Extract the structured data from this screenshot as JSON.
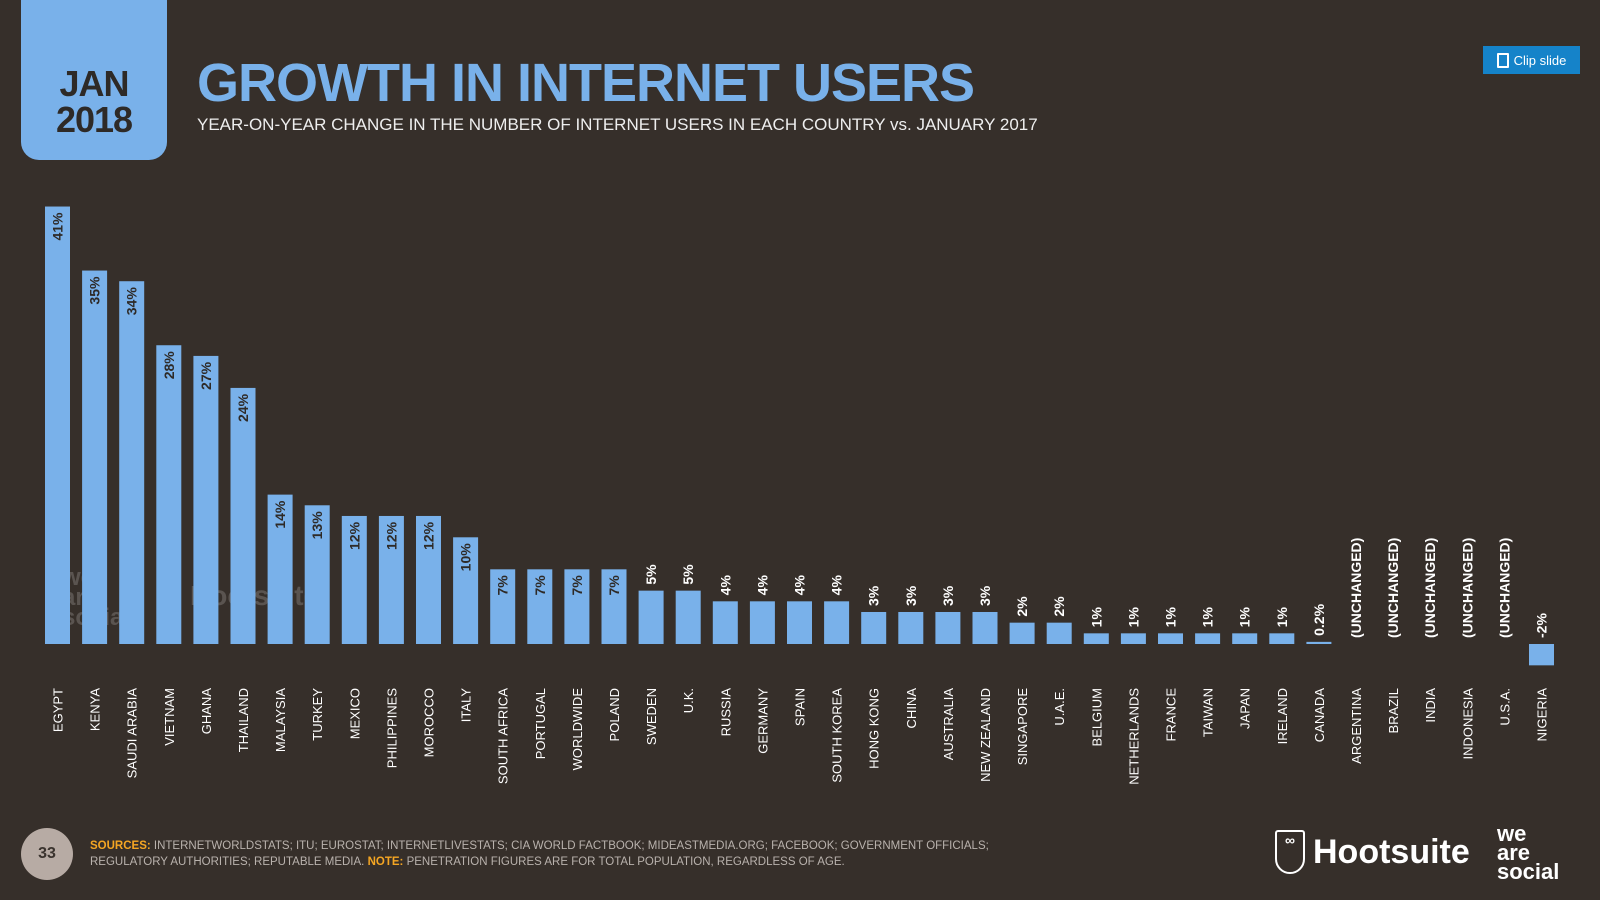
{
  "header": {
    "month": "JAN",
    "year": "2018",
    "title": "GROWTH IN INTERNET USERS",
    "subtitle": "YEAR-ON-YEAR CHANGE IN THE NUMBER OF INTERNET USERS IN EACH COUNTRY vs. JANUARY 2017"
  },
  "clip_button": {
    "label": "Clip slide",
    "icon": "clipboard-icon"
  },
  "footer": {
    "page_number": "33",
    "sources_label": "SOURCES:",
    "sources_text": "INTERNETWORLDSTATS; ITU; EUROSTAT; INTERNETLIVESTATS; CIA WORLD FACTBOOK; MIDEASTMEDIA.ORG; FACEBOOK; GOVERNMENT OFFICIALS; REGULATORY AUTHORITIES; REPUTABLE MEDIA.",
    "note_label": "NOTE:",
    "note_text": "PENETRATION FIGURES ARE FOR TOTAL POPULATION, REGARDLESS OF AGE.",
    "hootsuite": "Hootsuite",
    "we_are_social": [
      "we",
      "are",
      "social"
    ]
  },
  "colors": {
    "background": "#362f2a",
    "bar": "#79b1ea",
    "accent": "#f5a623"
  },
  "chart_data": {
    "type": "bar",
    "title": "GROWTH IN INTERNET USERS",
    "orientation": "vertical",
    "grid": false,
    "categories": [
      "EGYPT",
      "KENYA",
      "SAUDI ARABIA",
      "VIETNAM",
      "GHANA",
      "THAILAND",
      "MALAYSIA",
      "TURKEY",
      "MEXICO",
      "PHILIPPINES",
      "MOROCCO",
      "ITALY",
      "SOUTH AFRICA",
      "PORTUGAL",
      "WORLDWIDE",
      "POLAND",
      "SWEDEN",
      "U.K.",
      "RUSSIA",
      "GERMANY",
      "SPAIN",
      "SOUTH KOREA",
      "HONG KONG",
      "CHINA",
      "AUSTRALIA",
      "NEW ZEALAND",
      "SINGAPORE",
      "U.A.E.",
      "BELGIUM",
      "NETHERLANDS",
      "FRANCE",
      "TAIWAN",
      "JAPAN",
      "IRELAND",
      "CANADA",
      "ARGENTINA",
      "BRAZIL",
      "INDIA",
      "INDONESIA",
      "U.S.A.",
      "NIGERIA"
    ],
    "values": [
      41,
      35,
      34,
      28,
      27,
      24,
      14,
      13,
      12,
      12,
      12,
      10,
      7,
      7,
      7,
      7,
      5,
      5,
      4,
      4,
      4,
      4,
      3,
      3,
      3,
      3,
      2,
      2,
      1,
      1,
      1,
      1,
      1,
      1,
      0.2,
      0,
      0,
      0,
      0,
      0,
      -2
    ],
    "data_labels": [
      "41%",
      "35%",
      "34%",
      "28%",
      "27%",
      "24%",
      "14%",
      "13%",
      "12%",
      "12%",
      "12%",
      "10%",
      "7%",
      "7%",
      "7%",
      "7%",
      "5%",
      "5%",
      "4%",
      "4%",
      "4%",
      "4%",
      "3%",
      "3%",
      "3%",
      "3%",
      "2%",
      "2%",
      "1%",
      "1%",
      "1%",
      "1%",
      "1%",
      "1%",
      "0.2%",
      "(UNCHANGED)",
      "(UNCHANGED)",
      "(UNCHANGED)",
      "(UNCHANGED)",
      "(UNCHANGED)",
      "-2%"
    ],
    "unit": "%"
  }
}
